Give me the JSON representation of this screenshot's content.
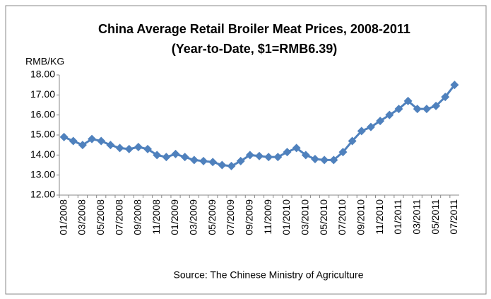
{
  "chart_data": {
    "type": "line",
    "title": "China Average Retail Broiler Meat Prices, 2008-2011",
    "subtitle": "(Year-to-Date,  $1=RMB6.39)",
    "y_label": "RMB/KG",
    "x_label": "Source: The Chinese Ministry of Agriculture",
    "categories": [
      "01/2008",
      null,
      "03/2008",
      null,
      "05/2008",
      null,
      "07/2008",
      null,
      "09/2008",
      null,
      "11/2008",
      null,
      "01/2009",
      null,
      "03/2009",
      null,
      "05/2009",
      null,
      "07/2009",
      null,
      "09/2009",
      null,
      "11/2009",
      null,
      "01/2010",
      null,
      "03/2010",
      null,
      "05/2010",
      null,
      "07/2010",
      null,
      "09/2010",
      null,
      "11/2010",
      null,
      "01/2011",
      null,
      "03/2011",
      null,
      "05/2011",
      null,
      "07/2011"
    ],
    "values": [
      14.9,
      14.7,
      14.5,
      14.8,
      14.7,
      14.5,
      14.35,
      14.3,
      14.4,
      14.3,
      14.0,
      13.9,
      14.05,
      13.9,
      13.75,
      13.7,
      13.65,
      13.5,
      13.45,
      13.7,
      14.0,
      13.95,
      13.9,
      13.9,
      14.15,
      14.35,
      14.0,
      13.8,
      13.75,
      13.75,
      14.15,
      14.7,
      15.2,
      15.4,
      15.7,
      16.0,
      16.3,
      16.7,
      16.3,
      16.3,
      16.45,
      16.9,
      17.5
    ],
    "color": "#4f81bd",
    "ylim": [
      12,
      18
    ],
    "yticks": [
      {
        "value": 12,
        "label": "12.00"
      },
      {
        "value": 13,
        "label": "13.00"
      },
      {
        "value": 14,
        "label": "14.00"
      },
      {
        "value": 15,
        "label": "15.00"
      },
      {
        "value": 16,
        "label": "16.00"
      },
      {
        "value": 17,
        "label": "17.00"
      },
      {
        "value": 18,
        "label": "18.00"
      }
    ],
    "grid": false
  }
}
